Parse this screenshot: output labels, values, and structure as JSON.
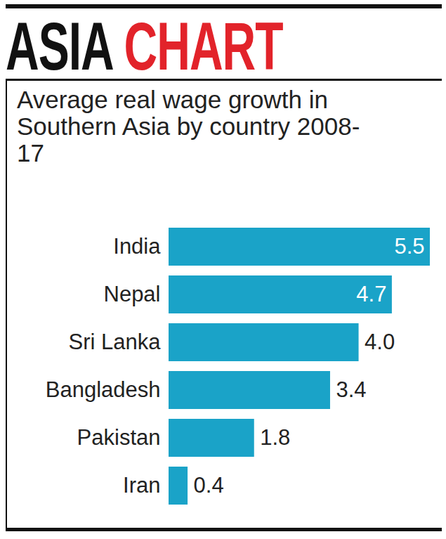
{
  "chart_data": {
    "type": "bar",
    "orientation": "horizontal",
    "title": "ASIA CHART",
    "subtitle": "Average real wage growth in Southern Asia by country 2008-17",
    "categories": [
      "India",
      "Nepal",
      "Sri Lanka",
      "Bangladesh",
      "Pakistan",
      "Iran"
    ],
    "values": [
      5.5,
      4.7,
      4.0,
      3.4,
      1.8,
      0.4
    ],
    "value_labels": [
      "5.5",
      "4.7",
      "4.0",
      "3.4",
      "1.8",
      "0.4"
    ],
    "color": "#1aa3c8",
    "xlim": [
      0,
      5.5
    ],
    "data_labels": true,
    "tick_labels": "y",
    "grid": false
  }
}
